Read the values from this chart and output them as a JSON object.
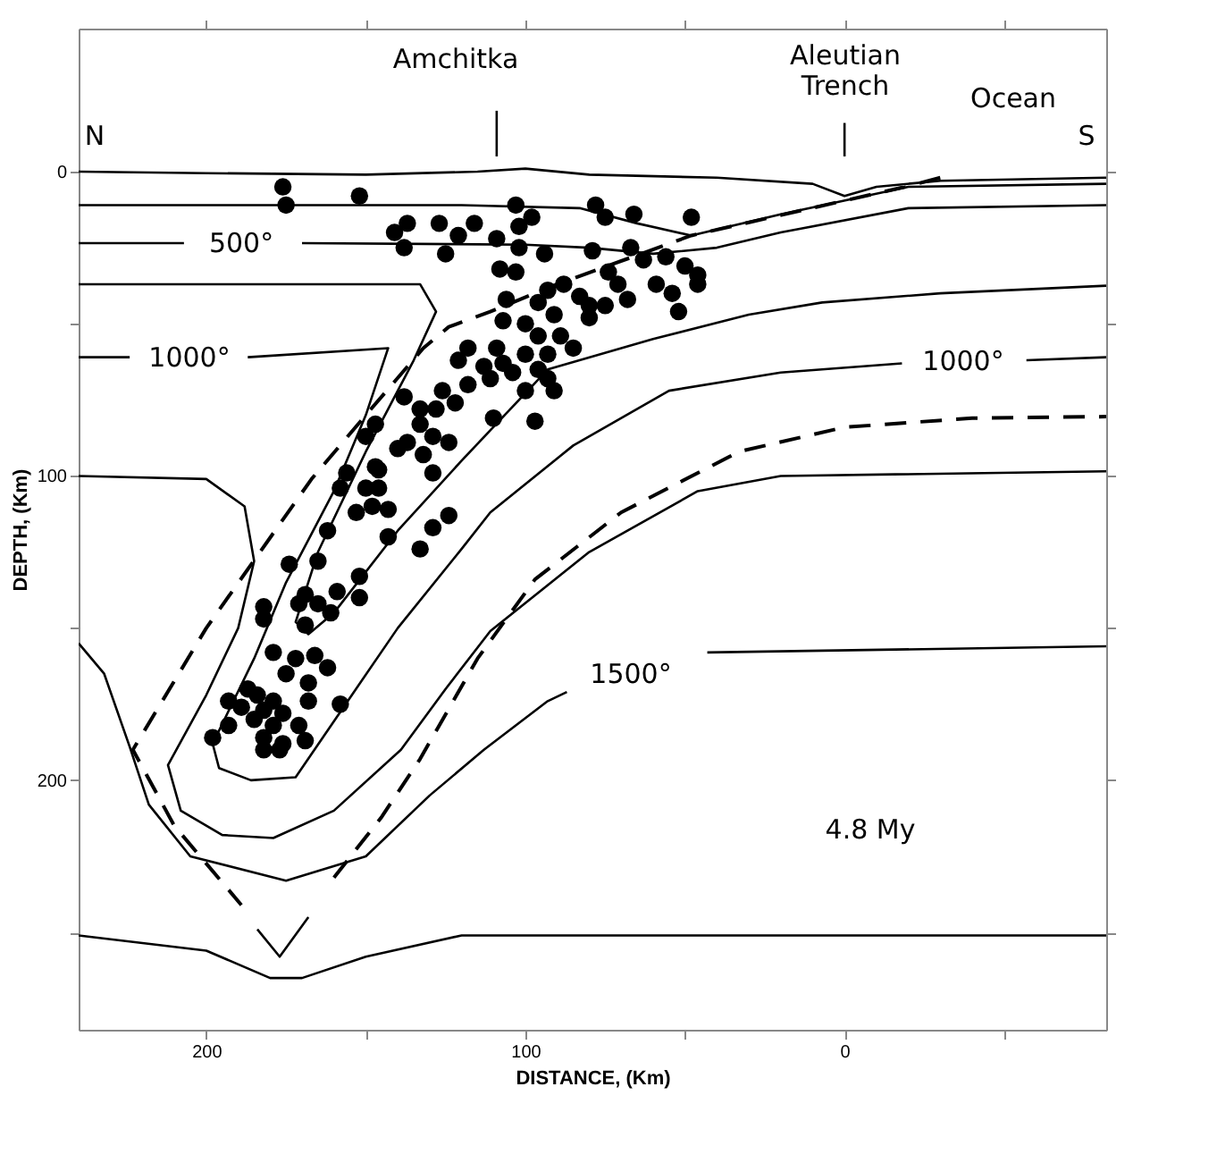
{
  "chart_data": {
    "type": "scatter",
    "xlabel": "DISTANCE, (Km)",
    "ylabel": "DEPTH, (Km)",
    "xlim": [
      240,
      -82
    ],
    "ylim": [
      282,
      -47
    ],
    "xticks": [
      200,
      {
        "value": 150,
        "label": null
      },
      100,
      {
        "value": 50,
        "label": null
      },
      0,
      {
        "value": -50,
        "label": null
      }
    ],
    "yticks": [
      0,
      {
        "value": 50,
        "label": null
      },
      100,
      {
        "value": 150,
        "label": null
      },
      200,
      {
        "value": 250,
        "label": null
      }
    ],
    "grid": false,
    "series": [
      {
        "type": "line",
        "color": "#000000",
        "line_style": "solid",
        "x": [
          240,
          200,
          150,
          115,
          100,
          80,
          40,
          10,
          0,
          -10,
          -30,
          -82
        ],
        "values": [
          0,
          0.5,
          1,
          0,
          -1,
          1,
          2,
          4,
          8,
          5,
          3,
          2
        ]
      },
      {
        "type": "line",
        "color": "#000000",
        "line_style": "solid",
        "x": [
          240,
          120,
          83,
          65,
          48,
          20,
          -20,
          -82
        ],
        "values": [
          11,
          11,
          12,
          17,
          21,
          14,
          5,
          4
        ]
      },
      {
        "type": "line",
        "color": "#000000",
        "line_style": "solid",
        "x": [
          240,
          207,
          200,
          175,
          170,
          100,
          80,
          60,
          40,
          20,
          -20,
          -82
        ],
        "values": [
          23.5,
          23.5,
          null,
          null,
          23.5,
          24,
          25,
          27,
          25,
          20,
          12,
          11
        ]
      },
      {
        "type": "line",
        "color": "#000000",
        "line_style": "solid",
        "x": [
          240,
          133,
          128,
          135,
          150,
          165,
          172,
          168,
          160,
          140,
          120,
          93,
          60,
          30,
          7,
          -30,
          -82
        ],
        "values": [
          37,
          37,
          46,
          62,
          92,
          125,
          148,
          152,
          145,
          118,
          95,
          65,
          55,
          47,
          43,
          40,
          37.5
        ]
      },
      {
        "type": "line",
        "color": "#000000",
        "line_style": "solid",
        "x": [
          240,
          224,
          210,
          190,
          187,
          143,
          150,
          160,
          175,
          185,
          198,
          196,
          186,
          172,
          157,
          140,
          120,
          111,
          85,
          55,
          20,
          -18,
          -25,
          -50,
          -57,
          -82
        ],
        "values": [
          61,
          61,
          null,
          null,
          61,
          58,
          80,
          105,
          135,
          160,
          188,
          196,
          200,
          199,
          176,
          150,
          124,
          112,
          90,
          72,
          66,
          63,
          null,
          null,
          62,
          61
        ]
      },
      {
        "type": "line",
        "color": "#000000",
        "line_style": "solid",
        "x": [
          240,
          200,
          188,
          185,
          190,
          200,
          212,
          208,
          195,
          179,
          160,
          139,
          125,
          111,
          80,
          46,
          20,
          -82
        ],
        "values": [
          100,
          101,
          110,
          128,
          150,
          172,
          195,
          210,
          218,
          219,
          210,
          190,
          170,
          151,
          125,
          105,
          100,
          98.5
        ]
      },
      {
        "type": "line",
        "color": "#000000",
        "line_style": "solid",
        "x": [
          240,
          232,
          224,
          218,
          205,
          175,
          150,
          130,
          113,
          93,
          87,
          70,
          48,
          43,
          -82
        ],
        "values": [
          155,
          165,
          189,
          208,
          225,
          233,
          225,
          205,
          190,
          174,
          171,
          null,
          null,
          158,
          156
        ]
      },
      {
        "type": "line",
        "color": "#000000",
        "line_style": "solid",
        "x": [
          240,
          200,
          180,
          170,
          150,
          120,
          -82
        ],
        "values": [
          251,
          256,
          265,
          265,
          258,
          251,
          251
        ]
      },
      {
        "type": "line",
        "color": "#000000",
        "line_style": "dashed",
        "x": [
          -30,
          -19,
          48,
          90,
          111,
          124,
          132,
          150,
          167,
          200,
          223,
          210,
          189
        ],
        "values": [
          2,
          5,
          21,
          37,
          46,
          51,
          58,
          80,
          101,
          150,
          190,
          215,
          241
        ]
      },
      {
        "type": "line",
        "color": "#000000",
        "line_style": "dashed",
        "x": [
          160,
          145,
          133,
          115,
          97,
          70,
          33,
          0,
          -40,
          -82
        ],
        "values": [
          232,
          212,
          193,
          160,
          134,
          112,
          92,
          84,
          81,
          80.5
        ]
      },
      {
        "type": "line",
        "color": "#000000",
        "line_style": "solid",
        "x": [
          184,
          177,
          168
        ],
        "values": [
          249,
          258,
          245
        ]
      },
      {
        "type": "line",
        "color": "#000000",
        "line_style": "solid",
        "x": [
          109,
          109
        ],
        "values": [
          -20,
          -5
        ]
      },
      {
        "type": "line",
        "color": "#000000",
        "line_style": "solid",
        "x": [
          0,
          0
        ],
        "values": [
          -16,
          -5
        ]
      },
      {
        "color": "#000000",
        "marker": "circle",
        "x": [
          176,
          175,
          152,
          103,
          98,
          78,
          75,
          66,
          48,
          137,
          141,
          138,
          127,
          125,
          121,
          116,
          109,
          102,
          102,
          94,
          108,
          103,
          79,
          67,
          74,
          63,
          56,
          50,
          46,
          46,
          71,
          68,
          59,
          54,
          52,
          93,
          88,
          83,
          80,
          75,
          80,
          106,
          96,
          91,
          107,
          100,
          96,
          89,
          85,
          100,
          93,
          109,
          118,
          121,
          113,
          107,
          104,
          96,
          93,
          91,
          100,
          118,
          111,
          126,
          138,
          133,
          128,
          122,
          110,
          97,
          133,
          129,
          124,
          137,
          140,
          132,
          129,
          147,
          147,
          156,
          158,
          146,
          150,
          146,
          150,
          153,
          148,
          143,
          129,
          124,
          143,
          133,
          162,
          174,
          165,
          152,
          159,
          152,
          169,
          171,
          165,
          161,
          169,
          182,
          182,
          179,
          172,
          166,
          162,
          175,
          168,
          187,
          184,
          179,
          193,
          189,
          182,
          176,
          168,
          158,
          193,
          185,
          179,
          171,
          198,
          182,
          176,
          169,
          182,
          177
        ],
        "values": [
          5,
          11,
          8,
          11,
          15,
          11,
          15,
          14,
          15,
          17,
          20,
          25,
          17,
          27,
          21,
          17,
          22,
          18,
          25,
          27,
          32,
          33,
          26,
          25,
          33,
          29,
          28,
          31,
          34,
          37,
          37,
          42,
          37,
          40,
          46,
          39,
          37,
          41,
          44,
          44,
          48,
          42,
          43,
          47,
          49,
          50,
          54,
          54,
          58,
          60,
          60,
          58,
          58,
          62,
          64,
          63,
          66,
          65,
          68,
          72,
          72,
          70,
          68,
          72,
          74,
          78,
          78,
          76,
          81,
          82,
          83,
          87,
          89,
          89,
          91,
          93,
          99,
          83,
          97,
          99,
          104,
          104,
          87,
          98,
          104,
          112,
          110,
          111,
          117,
          113,
          120,
          124,
          118,
          129,
          128,
          133,
          138,
          140,
          139,
          142,
          142,
          145,
          149,
          147,
          143,
          158,
          160,
          159,
          163,
          165,
          168,
          170,
          172,
          174,
          174,
          176,
          177,
          178,
          174,
          175,
          182,
          180,
          182,
          182,
          186,
          186,
          188,
          187,
          190,
          190
        ]
      }
    ],
    "annotations": [
      "N",
      "S",
      "Amchitka",
      "Aleutian\nTrench",
      "Ocean",
      "500°",
      "1000°",
      "1000°",
      "1500°",
      "4.8 My"
    ]
  }
}
